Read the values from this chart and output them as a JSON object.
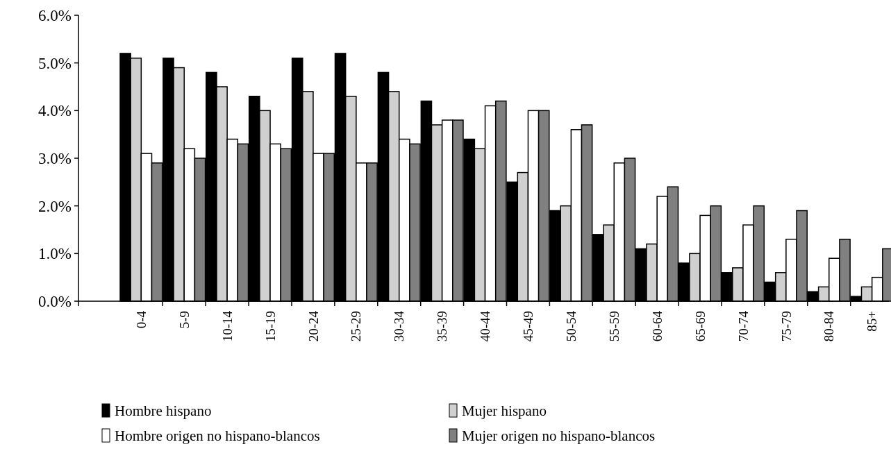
{
  "chart_data": {
    "type": "bar",
    "categories": [
      "0-4",
      "5-9",
      "10-14",
      "15-19",
      "20-24",
      "25-29",
      "30-34",
      "35-39",
      "40-44",
      "45-49",
      "50-54",
      "55-59",
      "60-64",
      "65-69",
      "70-74",
      "75-79",
      "80-84",
      "85+"
    ],
    "series": [
      {
        "name": "Hombre hispano",
        "color": "#000000",
        "values": [
          5.2,
          5.1,
          4.8,
          4.3,
          5.1,
          5.2,
          4.8,
          4.2,
          3.4,
          2.5,
          1.9,
          1.4,
          1.1,
          0.8,
          0.6,
          0.4,
          0.2,
          0.1
        ]
      },
      {
        "name": "Mujer hispano",
        "color": "#d0d0d0",
        "values": [
          5.1,
          4.9,
          4.5,
          4.0,
          4.4,
          4.3,
          4.4,
          3.7,
          3.2,
          2.7,
          2.0,
          1.6,
          1.2,
          1.0,
          0.7,
          0.6,
          0.3,
          0.3
        ]
      },
      {
        "name": "Hombre origen no hispano-blancos",
        "color": "#ffffff",
        "values": [
          3.1,
          3.2,
          3.4,
          3.3,
          3.1,
          2.9,
          3.4,
          3.8,
          4.1,
          4.0,
          3.6,
          2.9,
          2.2,
          1.8,
          1.6,
          1.3,
          0.9,
          0.5
        ]
      },
      {
        "name": "Mujer origen no hispano-blancos",
        "color": "#808080",
        "values": [
          2.9,
          3.0,
          3.3,
          3.2,
          3.1,
          2.9,
          3.3,
          3.8,
          4.2,
          4.0,
          3.7,
          3.0,
          2.4,
          2.0,
          2.0,
          1.9,
          1.3,
          1.1
        ]
      }
    ],
    "ylim": [
      0,
      6
    ],
    "yticks": [
      {
        "value": 0,
        "label": "0.0%"
      },
      {
        "value": 1,
        "label": "1.0%"
      },
      {
        "value": 2,
        "label": "2.0%"
      },
      {
        "value": 3,
        "label": "3.0%"
      },
      {
        "value": 4,
        "label": "4.0%"
      },
      {
        "value": 5,
        "label": "5.0%"
      },
      {
        "value": 6,
        "label": "6.0%"
      }
    ],
    "grid": false,
    "legend": "bottom"
  }
}
